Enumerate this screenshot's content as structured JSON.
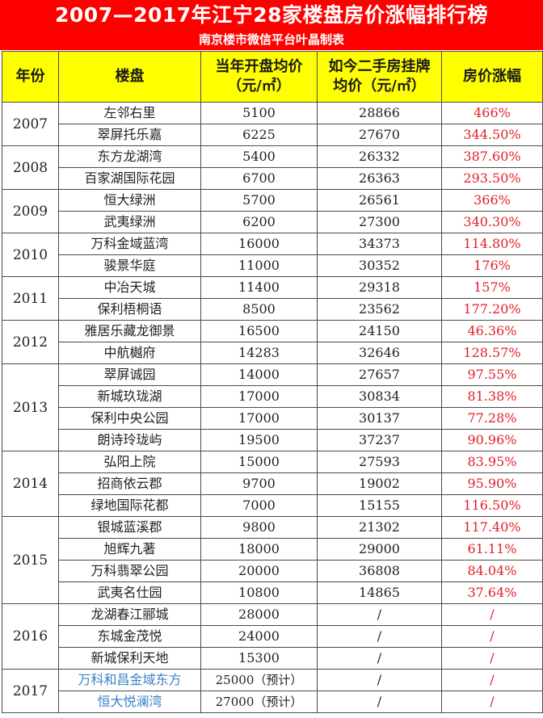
{
  "title": "2007—2017年江宁28家楼盘房价涨幅排行榜",
  "subtitle": "南京楼市微信平台叶晶制表",
  "headers": {
    "year": "年份",
    "project": "楼盘",
    "open_price_line1": "当年开盘均价",
    "open_price_line2": "（元/㎡）",
    "resale_price_line1": "如今二手房挂牌",
    "resale_price_line2": "均价（元/㎡）",
    "increase": "房价涨幅"
  },
  "groups": [
    {
      "year": "2007",
      "rows": [
        {
          "name": "左邻右里",
          "open": "5100",
          "resale": "28866",
          "increase": "466%"
        },
        {
          "name": "翠屏托乐嘉",
          "open": "6225",
          "resale": "27670",
          "increase": "344.50%"
        }
      ]
    },
    {
      "year": "2008",
      "rows": [
        {
          "name": "东方龙湖湾",
          "open": "5400",
          "resale": "26332",
          "increase": "387.60%"
        },
        {
          "name": "百家湖国际花园",
          "open": "6700",
          "resale": "26363",
          "increase": "293.50%"
        }
      ]
    },
    {
      "year": "2009",
      "rows": [
        {
          "name": "恒大绿洲",
          "open": "5700",
          "resale": "26561",
          "increase": "366%"
        },
        {
          "name": "武夷绿洲",
          "open": "6200",
          "resale": "27300",
          "increase": "340.30%"
        }
      ]
    },
    {
      "year": "2010",
      "rows": [
        {
          "name": "万科金域蓝湾",
          "open": "16000",
          "resale": "34373",
          "increase": "114.80%"
        },
        {
          "name": "骏景华庭",
          "open": "11000",
          "resale": "30352",
          "increase": "176%"
        }
      ]
    },
    {
      "year": "2011",
      "rows": [
        {
          "name": "中冶天城",
          "open": "11400",
          "resale": "29318",
          "increase": "157%"
        },
        {
          "name": "保利梧桐语",
          "open": "8500",
          "resale": "23562",
          "increase": "177.20%"
        }
      ]
    },
    {
      "year": "2012",
      "rows": [
        {
          "name": "雅居乐藏龙御景",
          "open": "16500",
          "resale": "24150",
          "increase": "46.36%"
        },
        {
          "name": "中航樾府",
          "open": "14283",
          "resale": "32646",
          "increase": "128.57%"
        }
      ]
    },
    {
      "year": "2013",
      "rows": [
        {
          "name": "翠屏诚园",
          "open": "14000",
          "resale": "27657",
          "increase": "97.55%"
        },
        {
          "name": "新城玖珑湖",
          "open": "17000",
          "resale": "30834",
          "increase": "81.38%"
        },
        {
          "name": "保利中央公园",
          "open": "17000",
          "resale": "30137",
          "increase": "77.28%"
        },
        {
          "name": "朗诗玲珑屿",
          "open": "19500",
          "resale": "37237",
          "increase": "90.96%"
        }
      ]
    },
    {
      "year": "2014",
      "rows": [
        {
          "name": "弘阳上院",
          "open": "15000",
          "resale": "27593",
          "increase": "83.95%"
        },
        {
          "name": "招商依云郡",
          "open": "9700",
          "resale": "19002",
          "increase": "95.90%"
        },
        {
          "name": "绿地国际花都",
          "open": "7000",
          "resale": "15155",
          "increase": "116.50%"
        }
      ]
    },
    {
      "year": "2015",
      "rows": [
        {
          "name": "银城蓝溪郡",
          "open": "9800",
          "resale": "21302",
          "increase": "117.40%"
        },
        {
          "name": "旭辉九著",
          "open": "18000",
          "resale": "29000",
          "increase": "61.11%"
        },
        {
          "name": "万科翡翠公园",
          "open": "20000",
          "resale": "36808",
          "increase": "84.04%"
        },
        {
          "name": "武夷名仕园",
          "open": "10800",
          "resale": "14865",
          "increase": "37.64%"
        }
      ]
    },
    {
      "year": "2016",
      "rows": [
        {
          "name": "龙湖春江郦城",
          "open": "28000",
          "resale": "/",
          "increase": "/"
        },
        {
          "name": "东城金茂悦",
          "open": "24000",
          "resale": "/",
          "increase": "/"
        },
        {
          "name": "新城保利天地",
          "open": "15300",
          "resale": "/",
          "increase": "/"
        }
      ]
    },
    {
      "year": "2017",
      "rows": [
        {
          "name": "万科和昌金域东方",
          "open": "25000（预计）",
          "resale": "/",
          "increase": "/",
          "name_blue": true
        },
        {
          "name": "恒大悦澜湾",
          "open": "27000（预计）",
          "resale": "/",
          "increase": "/",
          "name_blue": true
        }
      ]
    }
  ],
  "colors": {
    "banner": "#ff0000",
    "header_bg": "#ffff00",
    "increase_text": "#e0202a",
    "highlight_name": "#3a7fc8"
  }
}
